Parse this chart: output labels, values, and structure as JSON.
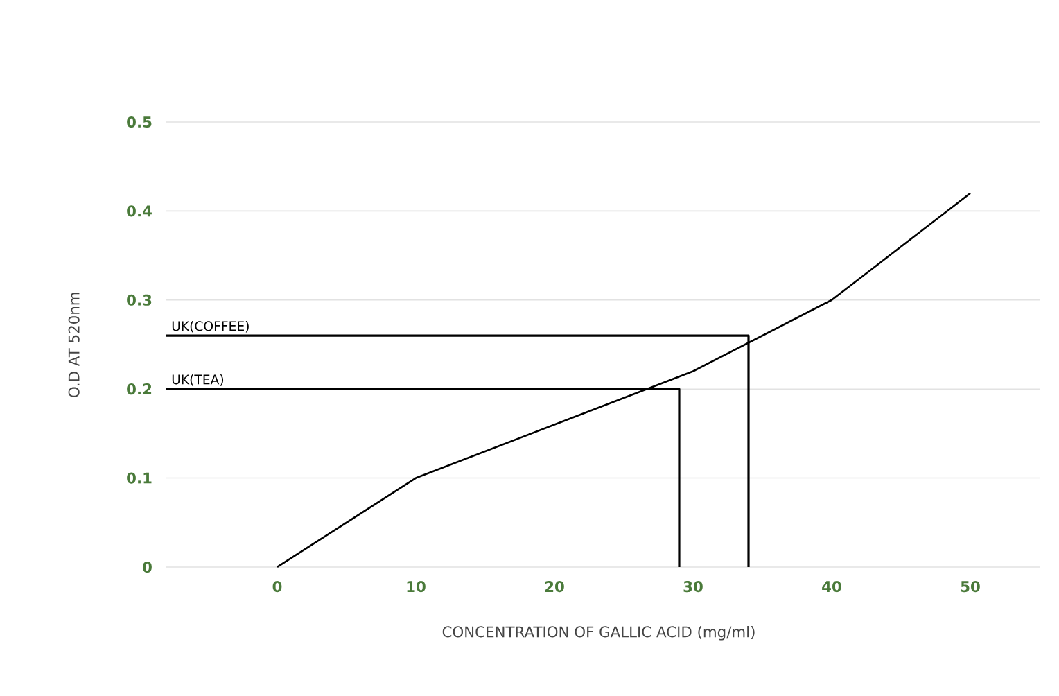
{
  "chart_data": {
    "type": "line",
    "xlabel": "CONCENTRATION OF GALLIC ACID (mg/ml)",
    "ylabel": "O.D AT 520nm",
    "xlim": [
      -8,
      55
    ],
    "ylim": [
      0,
      0.5
    ],
    "xticks": [
      0,
      10,
      20,
      30,
      40,
      50
    ],
    "yticks": [
      0,
      0.1,
      0.2,
      0.3,
      0.4,
      0.5
    ],
    "grid": "y",
    "series": [
      {
        "color": "#000000",
        "x": [
          0,
          10,
          20,
          30,
          40,
          50
        ],
        "values": [
          0,
          0.1,
          0.16,
          0.22,
          0.3,
          0.42
        ]
      },
      {
        "name": "UK(COFFEE)",
        "color": "#000000",
        "x": [
          -8,
          34,
          34
        ],
        "values": [
          0.26,
          0.26,
          0
        ]
      },
      {
        "name": "UK(TEA)",
        "color": "#000000",
        "x": [
          -8,
          29,
          29
        ],
        "values": [
          0.2,
          0.2,
          0
        ]
      }
    ]
  }
}
